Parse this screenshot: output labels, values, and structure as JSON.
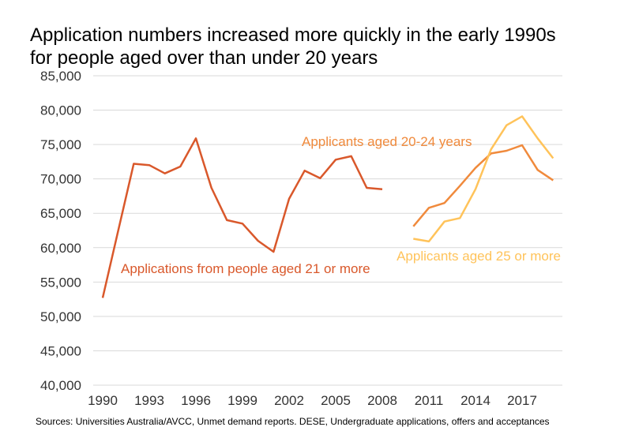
{
  "chart_data": {
    "type": "line",
    "title": " Application numbers increased more quickly in the early 1990s for  people aged over than under 20 years",
    "xlabel": "",
    "ylabel": "",
    "ylim": [
      40000,
      85000
    ],
    "xlim": [
      1990,
      2019
    ],
    "grid": true,
    "y_ticks": [
      "40,000",
      "45,000",
      "50,000",
      "55,000",
      "60,000",
      "65,000",
      "70,000",
      "75,000",
      "80,000",
      "85,000"
    ],
    "y_tick_values": [
      40000,
      45000,
      50000,
      55000,
      60000,
      65000,
      70000,
      75000,
      80000,
      85000
    ],
    "x_ticks": [
      "1990",
      "1993",
      "1996",
      "1999",
      "2002",
      "2005",
      "2008",
      "2011",
      "2014",
      "2017"
    ],
    "x_tick_values": [
      1990,
      1993,
      1996,
      1999,
      2002,
      2005,
      2008,
      2011,
      2014,
      2017
    ],
    "series": [
      {
        "name": "Applications from people aged 21 or more",
        "color": "#D9582B",
        "x": [
          1990,
          1991,
          1992,
          1993,
          1994,
          1995,
          1996,
          1997,
          1998,
          1999,
          2000,
          2001,
          2002,
          2003,
          2004,
          2005,
          2006,
          2007,
          2008
        ],
        "values": [
          52700,
          62500,
          72200,
          72000,
          70800,
          71800,
          75900,
          68700,
          64000,
          63500,
          61000,
          59400,
          67100,
          71200,
          70100,
          72800,
          73300,
          68700,
          68500
        ]
      },
      {
        "name": "Applicants aged 20-24 years",
        "color": "#F08A3C",
        "x": [
          2010,
          2011,
          2012,
          2013,
          2014,
          2015,
          2016,
          2017,
          2018,
          2019
        ],
        "values": [
          63100,
          65800,
          66500,
          69000,
          71600,
          73700,
          74100,
          74900,
          71300,
          69800
        ]
      },
      {
        "name": "Applicants aged 25 or more",
        "color": "#FFC35A",
        "x": [
          2010,
          2011,
          2012,
          2013,
          2014,
          2015,
          2016,
          2017,
          2018,
          2019
        ],
        "values": [
          61300,
          60900,
          63800,
          64300,
          68500,
          74300,
          77800,
          79100,
          75900,
          73000
        ]
      }
    ]
  },
  "source": "Sources: Universities Australia/AVCC, Unmet demand reports. DESE, Undergraduate applications, offers and acceptances"
}
